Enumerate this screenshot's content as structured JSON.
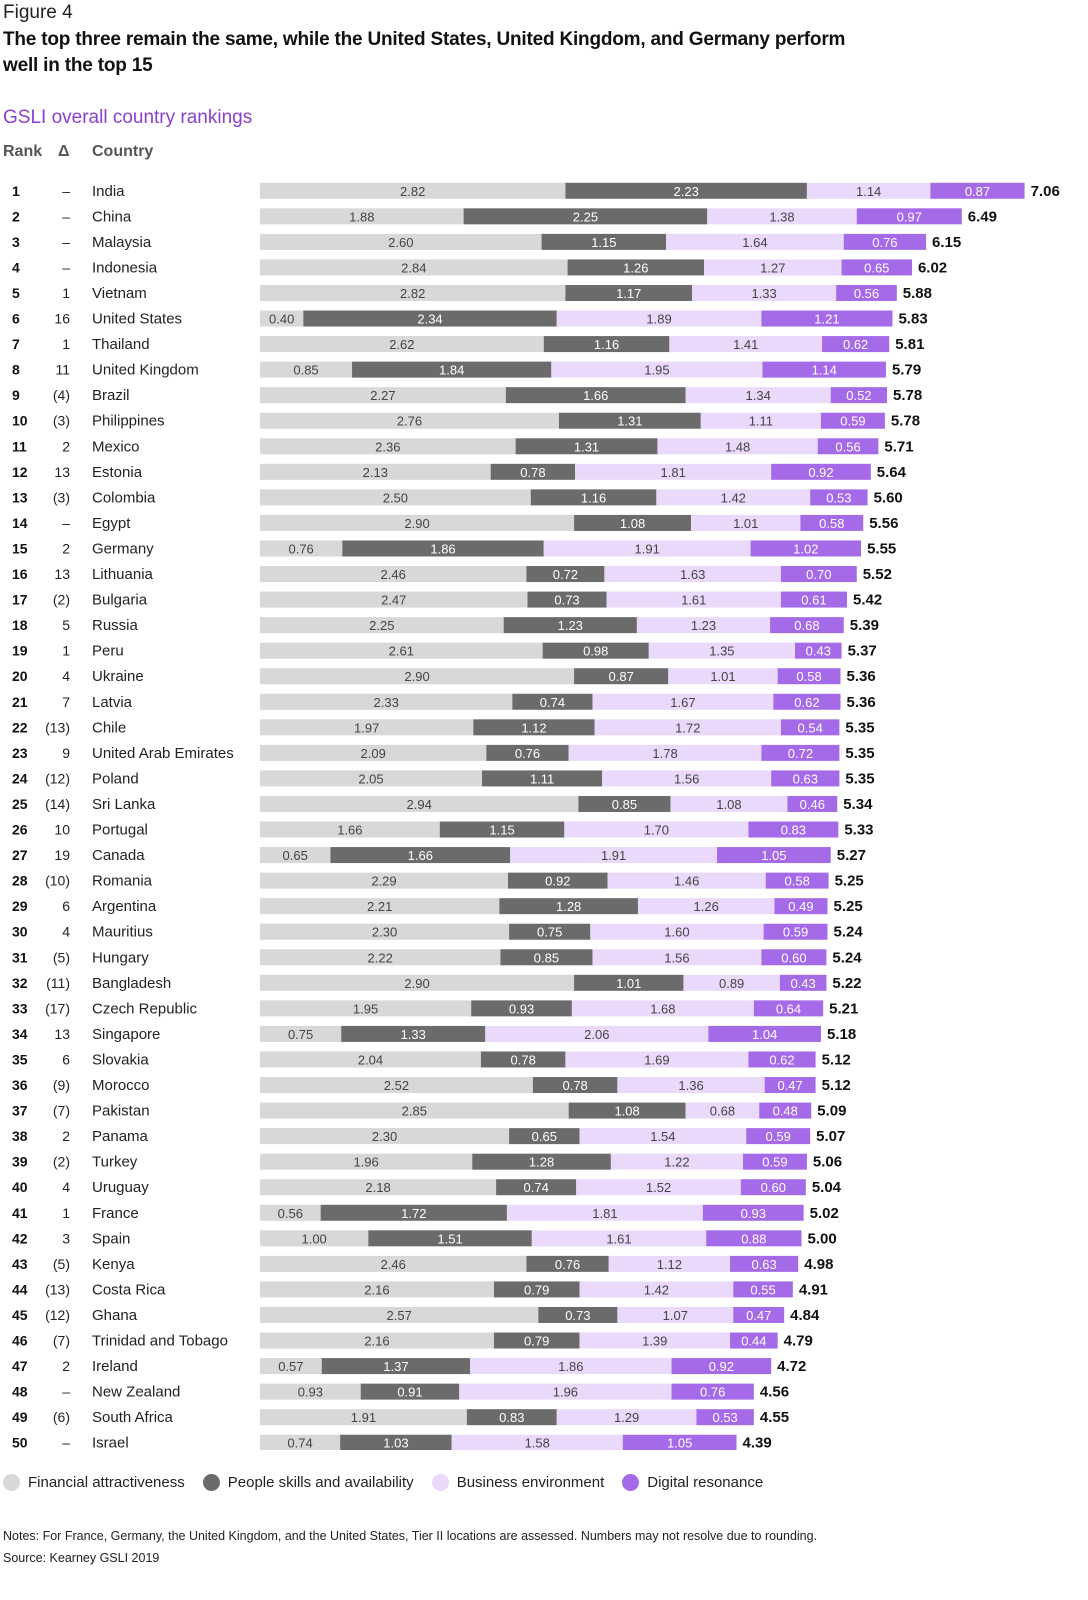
{
  "figure_label": "Figure 4",
  "headline": "The top three remain the same, while the United States, United Kingdom, and Germany perform well in the top 15",
  "chart_data": {
    "type": "bar",
    "subtype": "horizontal-stacked",
    "title": "GSLI overall country rankings",
    "column_headers": {
      "rank": "Rank",
      "delta": "Δ",
      "country": "Country"
    },
    "series": [
      {
        "name": "Financial attractiveness",
        "color": "#d8d8d8",
        "text_color": "#444444"
      },
      {
        "name": "People skills and availability",
        "color": "#6b6b6b",
        "text_color": "#ffffff"
      },
      {
        "name": "Business environment",
        "color": "#ead9fb",
        "text_color": "#444444"
      },
      {
        "name": "Digital resonance",
        "color": "#a56ae8",
        "text_color": "#ffffff"
      }
    ],
    "rows": [
      {
        "rank": "1",
        "delta": "–",
        "country": "India",
        "values": [
          2.82,
          2.23,
          1.14,
          0.87
        ],
        "total": "7.06"
      },
      {
        "rank": "2",
        "delta": "–",
        "country": "China",
        "values": [
          1.88,
          2.25,
          1.38,
          0.97
        ],
        "total": "6.49"
      },
      {
        "rank": "3",
        "delta": "–",
        "country": "Malaysia",
        "values": [
          2.6,
          1.15,
          1.64,
          0.76
        ],
        "total": "6.15"
      },
      {
        "rank": "4",
        "delta": "–",
        "country": "Indonesia",
        "values": [
          2.84,
          1.26,
          1.27,
          0.65
        ],
        "total": "6.02"
      },
      {
        "rank": "5",
        "delta": "1",
        "country": "Vietnam",
        "values": [
          2.82,
          1.17,
          1.33,
          0.56
        ],
        "total": "5.88"
      },
      {
        "rank": "6",
        "delta": "16",
        "country": "United States",
        "values": [
          0.4,
          2.34,
          1.89,
          1.21
        ],
        "total": "5.83"
      },
      {
        "rank": "7",
        "delta": "1",
        "country": "Thailand",
        "values": [
          2.62,
          1.16,
          1.41,
          0.62
        ],
        "total": "5.81"
      },
      {
        "rank": "8",
        "delta": "11",
        "country": "United Kingdom",
        "values": [
          0.85,
          1.84,
          1.95,
          1.14
        ],
        "total": "5.79"
      },
      {
        "rank": "9",
        "delta": "(4)",
        "country": "Brazil",
        "values": [
          2.27,
          1.66,
          1.34,
          0.52
        ],
        "total": "5.78"
      },
      {
        "rank": "10",
        "delta": "(3)",
        "country": "Philippines",
        "values": [
          2.76,
          1.31,
          1.11,
          0.59
        ],
        "total": "5.78"
      },
      {
        "rank": "11",
        "delta": "2",
        "country": "Mexico",
        "values": [
          2.36,
          1.31,
          1.48,
          0.56
        ],
        "total": "5.71"
      },
      {
        "rank": "12",
        "delta": "13",
        "country": "Estonia",
        "values": [
          2.13,
          0.78,
          1.81,
          0.92
        ],
        "total": "5.64"
      },
      {
        "rank": "13",
        "delta": "(3)",
        "country": "Colombia",
        "values": [
          2.5,
          1.16,
          1.42,
          0.53
        ],
        "total": "5.60"
      },
      {
        "rank": "14",
        "delta": "–",
        "country": "Egypt",
        "values": [
          2.9,
          1.08,
          1.01,
          0.58
        ],
        "total": "5.56"
      },
      {
        "rank": "15",
        "delta": "2",
        "country": "Germany",
        "values": [
          0.76,
          1.86,
          1.91,
          1.02
        ],
        "total": "5.55"
      },
      {
        "rank": "16",
        "delta": "13",
        "country": "Lithuania",
        "values": [
          2.46,
          0.72,
          1.63,
          0.7
        ],
        "total": "5.52"
      },
      {
        "rank": "17",
        "delta": "(2)",
        "country": "Bulgaria",
        "values": [
          2.47,
          0.73,
          1.61,
          0.61
        ],
        "total": "5.42"
      },
      {
        "rank": "18",
        "delta": "5",
        "country": "Russia",
        "values": [
          2.25,
          1.23,
          1.23,
          0.68
        ],
        "total": "5.39"
      },
      {
        "rank": "19",
        "delta": "1",
        "country": "Peru",
        "values": [
          2.61,
          0.98,
          1.35,
          0.43
        ],
        "total": "5.37"
      },
      {
        "rank": "20",
        "delta": "4",
        "country": "Ukraine",
        "values": [
          2.9,
          0.87,
          1.01,
          0.58
        ],
        "total": "5.36"
      },
      {
        "rank": "21",
        "delta": "7",
        "country": "Latvia",
        "values": [
          2.33,
          0.74,
          1.67,
          0.62
        ],
        "total": "5.36"
      },
      {
        "rank": "22",
        "delta": "(13)",
        "country": "Chile",
        "values": [
          1.97,
          1.12,
          1.72,
          0.54
        ],
        "total": "5.35"
      },
      {
        "rank": "23",
        "delta": "9",
        "country": "United Arab Emirates",
        "values": [
          2.09,
          0.76,
          1.78,
          0.72
        ],
        "total": "5.35"
      },
      {
        "rank": "24",
        "delta": "(12)",
        "country": "Poland",
        "values": [
          2.05,
          1.11,
          1.56,
          0.63
        ],
        "total": "5.35"
      },
      {
        "rank": "25",
        "delta": "(14)",
        "country": "Sri Lanka",
        "values": [
          2.94,
          0.85,
          1.08,
          0.46
        ],
        "total": "5.34"
      },
      {
        "rank": "26",
        "delta": "10",
        "country": "Portugal",
        "values": [
          1.66,
          1.15,
          1.7,
          0.83
        ],
        "total": "5.33"
      },
      {
        "rank": "27",
        "delta": "19",
        "country": "Canada",
        "values": [
          0.65,
          1.66,
          1.91,
          1.05
        ],
        "total": "5.27"
      },
      {
        "rank": "28",
        "delta": "(10)",
        "country": "Romania",
        "values": [
          2.29,
          0.92,
          1.46,
          0.58
        ],
        "total": "5.25"
      },
      {
        "rank": "29",
        "delta": "6",
        "country": "Argentina",
        "values": [
          2.21,
          1.28,
          1.26,
          0.49
        ],
        "total": "5.25"
      },
      {
        "rank": "30",
        "delta": "4",
        "country": "Mauritius",
        "values": [
          2.3,
          0.75,
          1.6,
          0.59
        ],
        "total": "5.24"
      },
      {
        "rank": "31",
        "delta": "(5)",
        "country": "Hungary",
        "values": [
          2.22,
          0.85,
          1.56,
          0.6
        ],
        "total": "5.24"
      },
      {
        "rank": "32",
        "delta": "(11)",
        "country": "Bangladesh",
        "values": [
          2.9,
          1.01,
          0.89,
          0.43
        ],
        "total": "5.22"
      },
      {
        "rank": "33",
        "delta": "(17)",
        "country": "Czech Republic",
        "values": [
          1.95,
          0.93,
          1.68,
          0.64
        ],
        "total": "5.21"
      },
      {
        "rank": "34",
        "delta": "13",
        "country": "Singapore",
        "values": [
          0.75,
          1.33,
          2.06,
          1.04
        ],
        "total": "5.18"
      },
      {
        "rank": "35",
        "delta": "6",
        "country": "Slovakia",
        "values": [
          2.04,
          0.78,
          1.69,
          0.62
        ],
        "total": "5.12"
      },
      {
        "rank": "36",
        "delta": "(9)",
        "country": "Morocco",
        "values": [
          2.52,
          0.78,
          1.36,
          0.47
        ],
        "total": "5.12"
      },
      {
        "rank": "37",
        "delta": "(7)",
        "country": "Pakistan",
        "values": [
          2.85,
          1.08,
          0.68,
          0.48
        ],
        "total": "5.09"
      },
      {
        "rank": "38",
        "delta": "2",
        "country": "Panama",
        "values": [
          2.3,
          0.65,
          1.54,
          0.59
        ],
        "total": "5.07"
      },
      {
        "rank": "39",
        "delta": "(2)",
        "country": "Turkey",
        "values": [
          1.96,
          1.28,
          1.22,
          0.59
        ],
        "total": "5.06"
      },
      {
        "rank": "40",
        "delta": "4",
        "country": "Uruguay",
        "values": [
          2.18,
          0.74,
          1.52,
          0.6
        ],
        "total": "5.04"
      },
      {
        "rank": "41",
        "delta": "1",
        "country": "France",
        "values": [
          0.56,
          1.72,
          1.81,
          0.93
        ],
        "total": "5.02"
      },
      {
        "rank": "42",
        "delta": "3",
        "country": "Spain",
        "values": [
          1.0,
          1.51,
          1.61,
          0.88
        ],
        "total": "5.00"
      },
      {
        "rank": "43",
        "delta": "(5)",
        "country": "Kenya",
        "values": [
          2.46,
          0.76,
          1.12,
          0.63
        ],
        "total": "4.98"
      },
      {
        "rank": "44",
        "delta": "(13)",
        "country": "Costa Rica",
        "values": [
          2.16,
          0.79,
          1.42,
          0.55
        ],
        "total": "4.91"
      },
      {
        "rank": "45",
        "delta": "(12)",
        "country": "Ghana",
        "values": [
          2.57,
          0.73,
          1.07,
          0.47
        ],
        "total": "4.84"
      },
      {
        "rank": "46",
        "delta": "(7)",
        "country": "Trinidad and Tobago",
        "values": [
          2.16,
          0.79,
          1.39,
          0.44
        ],
        "total": "4.79"
      },
      {
        "rank": "47",
        "delta": "2",
        "country": "Ireland",
        "values": [
          0.57,
          1.37,
          1.86,
          0.92
        ],
        "total": "4.72"
      },
      {
        "rank": "48",
        "delta": "–",
        "country": "New Zealand",
        "values": [
          0.93,
          0.91,
          1.96,
          0.76
        ],
        "total": "4.56"
      },
      {
        "rank": "49",
        "delta": "(6)",
        "country": "South Africa",
        "values": [
          1.91,
          0.83,
          1.29,
          0.53
        ],
        "total": "4.55"
      },
      {
        "rank": "50",
        "delta": "–",
        "country": "Israel",
        "values": [
          0.74,
          1.03,
          1.58,
          1.05
        ],
        "total": "4.39"
      }
    ],
    "legend_position": "bottom-left",
    "grid": false
  },
  "notes": "Notes: For France, Germany, the United Kingdom, and the United States, Tier II locations are assessed. Numbers may not resolve due to rounding.",
  "source": "Source: Kearney GSLI 2019"
}
